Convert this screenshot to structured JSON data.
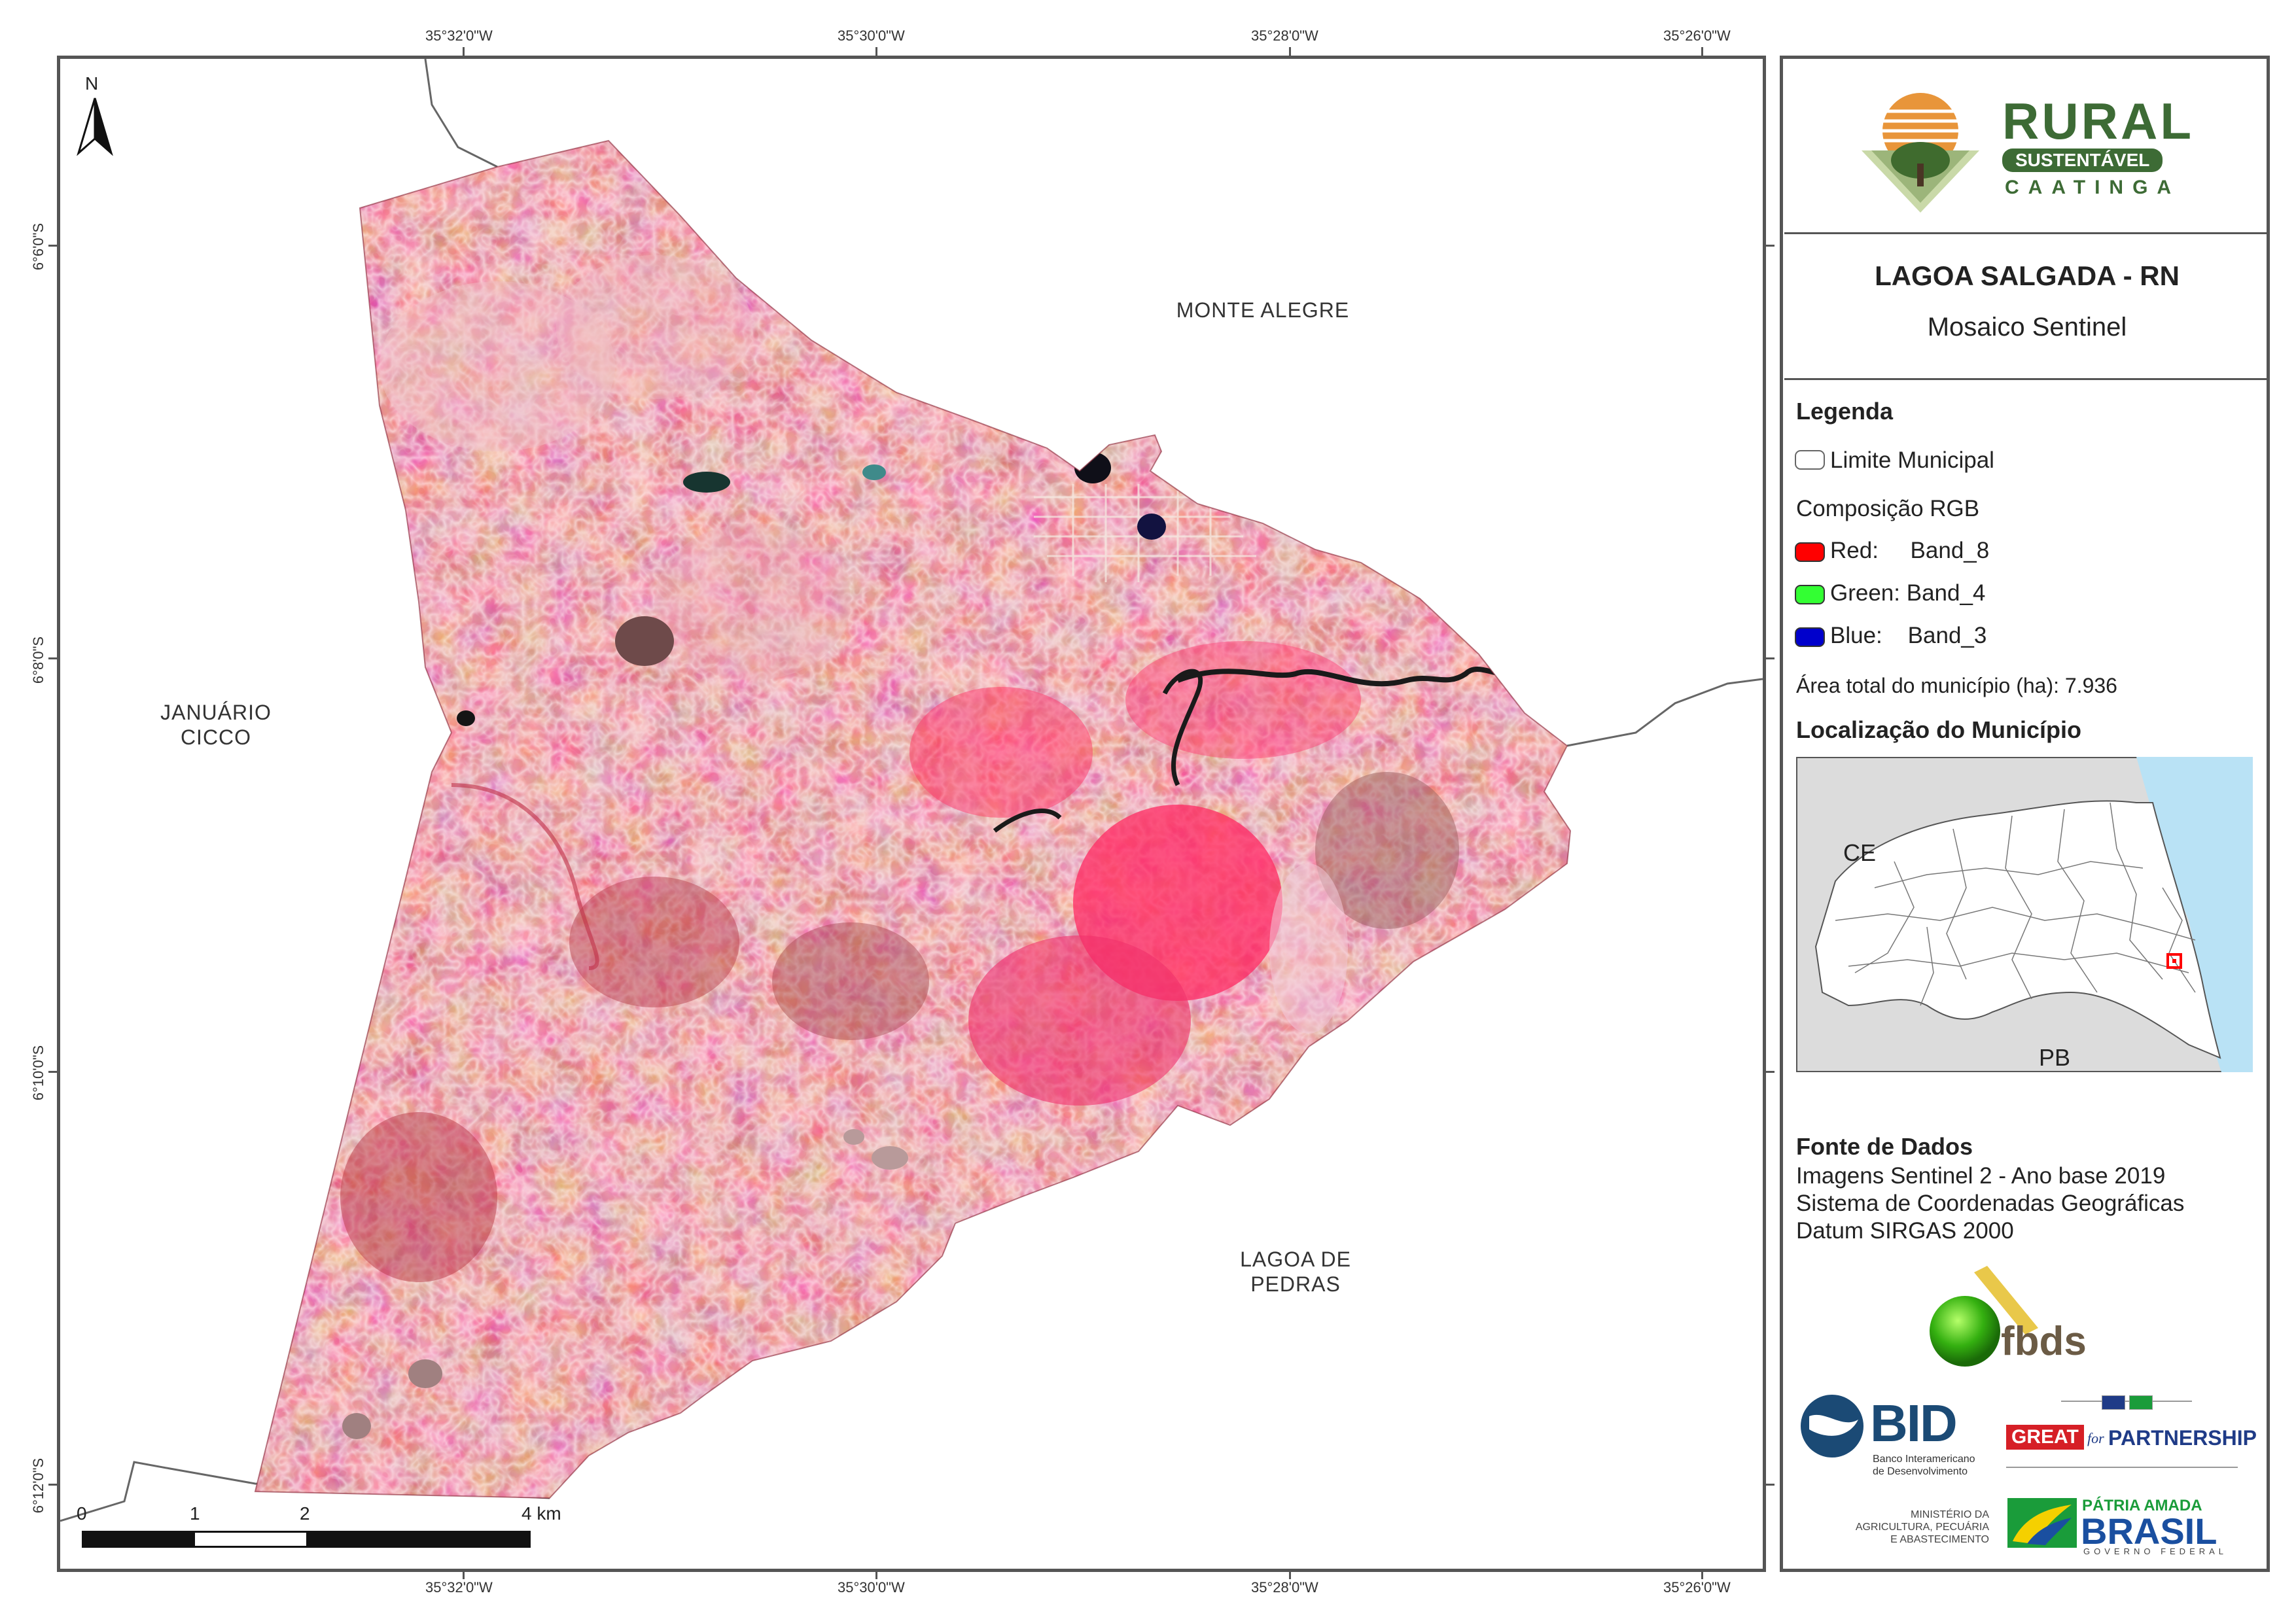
{
  "map": {
    "north_label": "N",
    "coords_top": [
      "35°32'0\"W",
      "35°30'0\"W",
      "35°28'0\"W",
      "35°26'0\"W"
    ],
    "coords_bottom": [
      "35°32'0\"W",
      "35°30'0\"W",
      "35°28'0\"W",
      "35°26'0\"W"
    ],
    "coords_left": [
      "6°6'0\"S",
      "6°8'0\"S",
      "6°10'0\"S",
      "6°12'0\"S"
    ],
    "neighbors": {
      "monte_alegre": "MONTE ALEGRE",
      "januario_line1": "JANUÁRIO",
      "januario_line2": "CICCO",
      "lagoa_line1": "LAGOA DE",
      "lagoa_line2": "PEDRAS"
    },
    "scale": {
      "labels": [
        "0",
        "1",
        "2",
        "4 km"
      ]
    }
  },
  "panel": {
    "logo": {
      "line1": "RURAL",
      "line2": "SUSTENTÁVEL",
      "line3": "CAATINGA"
    },
    "title": "LAGOA SALGADA - RN",
    "subtitle": "Mosaico Sentinel",
    "legend": {
      "heading": "Legenda",
      "limit": "Limite Municipal",
      "composition": "Composição RGB",
      "red": "Red:     Band_8",
      "green": "Green: Band_4",
      "blue": "Blue:    Band_3",
      "colors": {
        "red": "#ff0000",
        "green": "#33ff33",
        "blue": "#0000cc"
      },
      "area": "Área total do município (ha): 7.936"
    },
    "location": {
      "heading": "Localização do Município",
      "state_ce": "CE",
      "state_pb": "PB"
    },
    "sources": {
      "heading": "Fonte de Dados",
      "line1": "Imagens Sentinel 2 - Ano base 2019",
      "line2": "Sistema de Coordenadas Geográficas",
      "line3": "Datum SIRGAS 2000"
    },
    "logos": {
      "fbds": "fbds",
      "bid": "BID",
      "bid_sub1": "Banco Interamericano",
      "bid_sub2": "de Desenvolvimento",
      "great": "GREAT",
      "for": "for",
      "partnership": "PARTNERSHIP",
      "min1": "MINISTÉRIO DA",
      "min2": "AGRICULTURA, PECUÁRIA",
      "min3": "E ABASTECIMENTO",
      "patria": "PÁTRIA AMADA",
      "brasil": "BRASIL",
      "gov": "GOVERNO FEDERAL"
    }
  }
}
